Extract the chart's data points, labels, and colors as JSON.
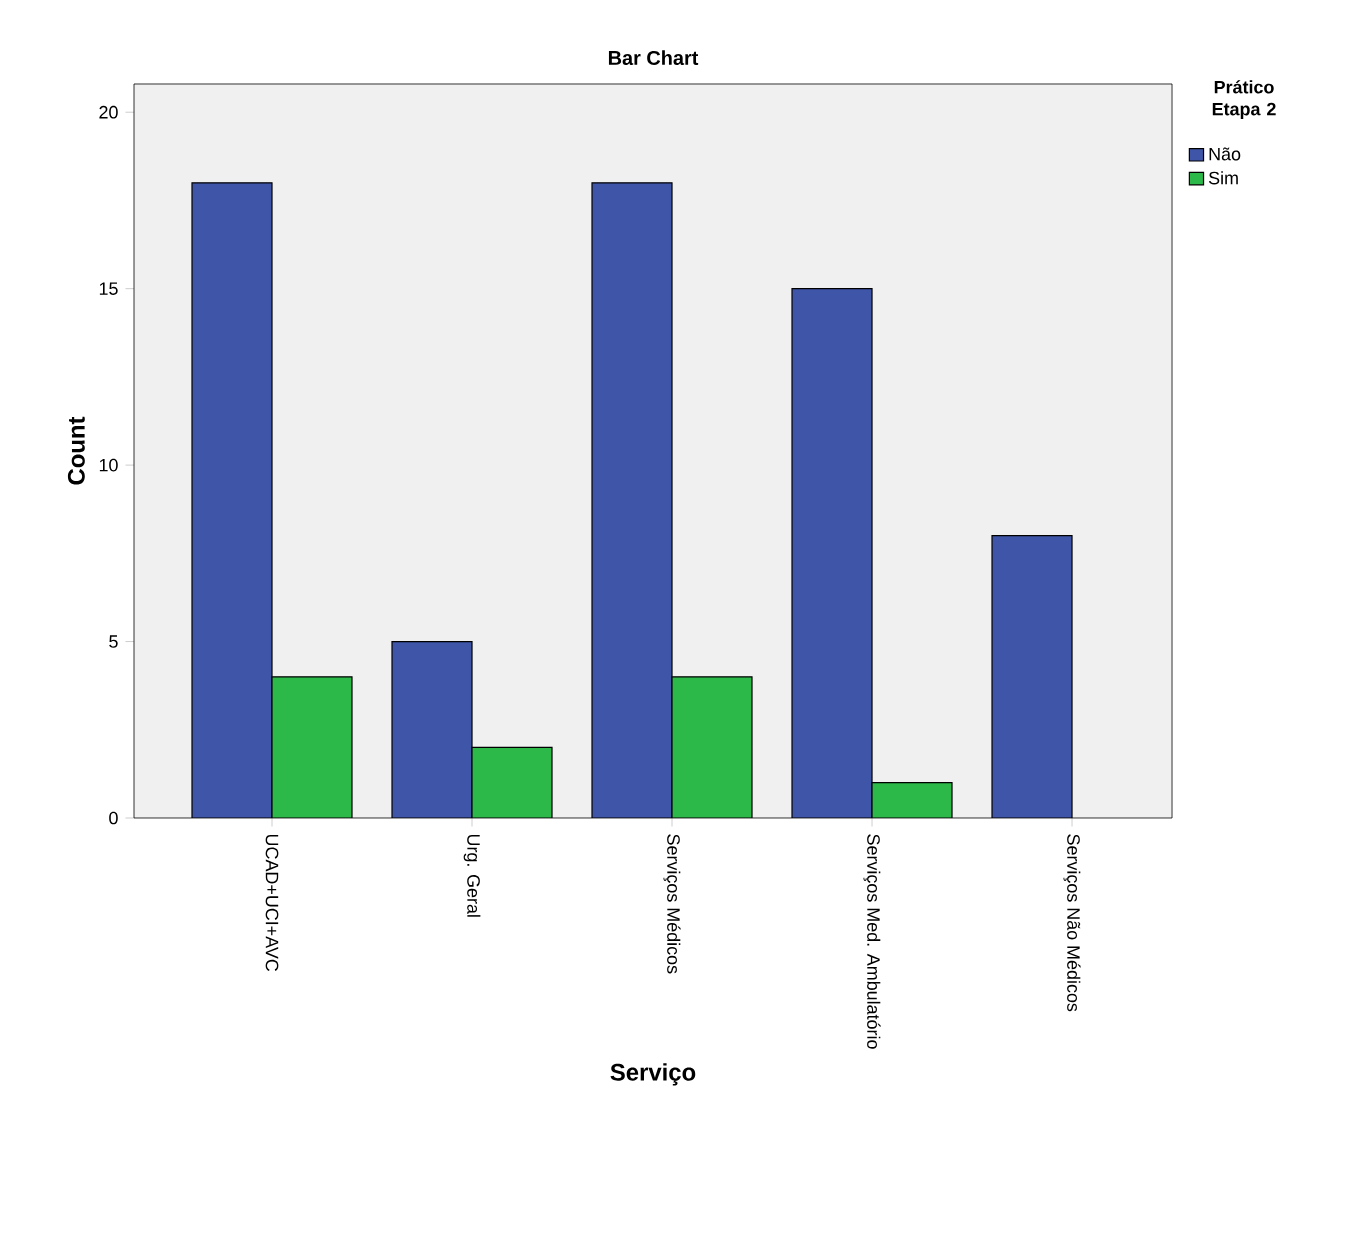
{
  "chart_data": {
    "type": "bar",
    "title": "Bar Chart",
    "xlabel": "Serviço",
    "ylabel": "Count",
    "legend_title": "Prático Etapa 2",
    "categories": [
      "UCAD+UCI+AVC",
      "Urg. Geral",
      "Serviços Médicos",
      "Serviços Med. Ambulatório",
      "Serviços Não Médicos"
    ],
    "series": [
      {
        "name": "Não",
        "color": "#3f56a8",
        "values": [
          18,
          5,
          18,
          15,
          8
        ]
      },
      {
        "name": "Sim",
        "color": "#2db84a",
        "values": [
          4,
          2,
          4,
          1,
          null
        ]
      }
    ],
    "ylim": [
      0,
      20.8
    ],
    "yticks": [
      0,
      5,
      10,
      15,
      20
    ],
    "grid": false,
    "legend": "top right"
  }
}
